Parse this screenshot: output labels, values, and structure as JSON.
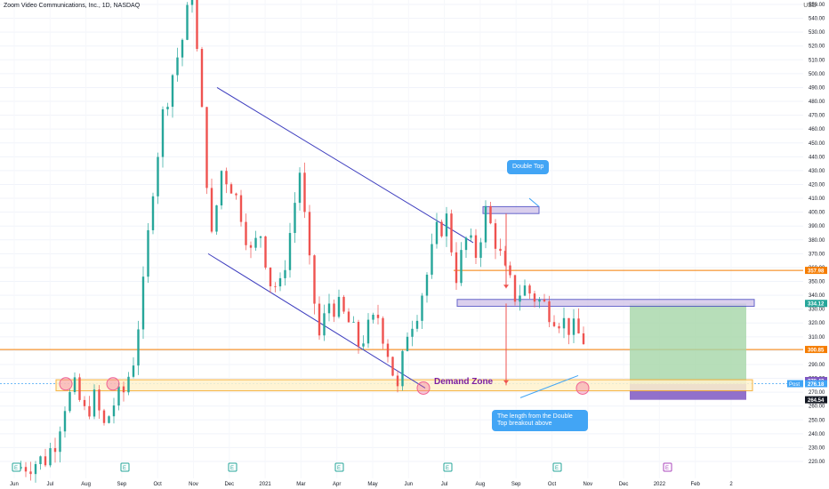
{
  "header": {
    "title": "Zoom Video Communications, Inc., 1D, NASDAQ",
    "currency": "USD"
  },
  "annotations": {
    "double_top": "Double Top",
    "demand_zone": "Demand Zone",
    "length_note_line1": "The length from the Double",
    "length_note_line2": "Top breakout above"
  },
  "colors": {
    "up": "#26a69a",
    "down": "#ef5350",
    "channel": "#3f3fbf",
    "zone_fill": "#fff3cd",
    "zone_border": "#f5a623",
    "target": "#a5d6a7",
    "stop": "#7e57c2",
    "hline": "#f57c00",
    "callout": "#42a5f5",
    "marker": "#f06292"
  },
  "chart_data": {
    "type": "candlestick",
    "ylim": [
      215,
      555
    ],
    "y_ticks": [
      220,
      230,
      240,
      250,
      260,
      270,
      280,
      290,
      300,
      310,
      320,
      330,
      340,
      350,
      360,
      370,
      380,
      390,
      400,
      410,
      420,
      430,
      440,
      450,
      460,
      470,
      480,
      490,
      500,
      510,
      520,
      530,
      540,
      550
    ],
    "x_ticks": [
      "Jun",
      "Jul",
      "Aug",
      "Sep",
      "Oct",
      "Nov",
      "Dec",
      "2021",
      "Mar",
      "Apr",
      "May",
      "Jun",
      "Jul",
      "Aug",
      "Sep",
      "Oct",
      "Nov",
      "Dec",
      "2022",
      "Feb",
      "2"
    ],
    "price_path": [
      [
        0,
        215
      ],
      [
        3,
        222
      ],
      [
        4,
        235
      ],
      [
        5,
        262
      ],
      [
        6,
        272
      ],
      [
        7,
        255
      ],
      [
        8,
        265
      ],
      [
        9,
        245
      ],
      [
        10,
        262
      ],
      [
        11,
        270
      ],
      [
        12,
        294
      ],
      [
        13,
        345
      ],
      [
        14,
        420
      ],
      [
        15,
        470
      ],
      [
        16,
        500
      ],
      [
        17,
        525
      ],
      [
        18,
        560
      ],
      [
        19,
        470
      ],
      [
        20,
        380
      ],
      [
        21,
        430
      ],
      [
        22,
        420
      ],
      [
        23,
        400
      ],
      [
        24,
        370
      ],
      [
        25,
        385
      ],
      [
        26,
        350
      ],
      [
        27,
        345
      ],
      [
        28,
        385
      ],
      [
        29,
        430
      ],
      [
        30,
        360
      ],
      [
        31,
        310
      ],
      [
        32,
        335
      ],
      [
        33,
        330
      ],
      [
        34,
        320
      ],
      [
        35,
        305
      ],
      [
        36,
        315
      ],
      [
        37,
        325
      ],
      [
        38,
        300
      ],
      [
        39,
        270
      ],
      [
        40,
        315
      ],
      [
        41,
        330
      ],
      [
        42,
        355
      ],
      [
        43,
        385
      ],
      [
        44,
        395
      ],
      [
        45,
        355
      ],
      [
        46,
        380
      ],
      [
        47,
        370
      ],
      [
        48,
        400
      ],
      [
        49,
        380
      ],
      [
        50,
        355
      ],
      [
        51,
        340
      ],
      [
        52,
        345
      ],
      [
        59,
        302
      ],
      [
        60,
        300
      ],
      [
        61,
        290
      ],
      [
        62,
        280
      ],
      [
        63,
        272
      ]
    ],
    "horizontal_levels": [
      {
        "label": "357.98",
        "value": 357.98
      },
      {
        "label": "300.85",
        "value": 300.85
      }
    ],
    "price_labels": [
      {
        "text": "357.98",
        "value": 357.98,
        "color": "#f57c00"
      },
      {
        "text": "334.12",
        "value": 334.12,
        "color": "#26a69a"
      },
      {
        "text": "300.85",
        "value": 300.85,
        "color": "#f57c00"
      },
      {
        "text": "278.43",
        "value": 278.43,
        "color": "#7e57c2"
      },
      {
        "text": "276.19",
        "value": 276.19,
        "color": "#131722"
      },
      {
        "text": "276.18",
        "value": 276.18,
        "color": "#42a5f5",
        "prefix": "Post"
      },
      {
        "text": "264.54",
        "value": 264.54,
        "color": "#131722"
      }
    ],
    "zones": [
      {
        "name": "Demand Zone",
        "low": 271,
        "high": 279
      },
      {
        "name": "Breakout Zone",
        "low": 332,
        "high": 337
      },
      {
        "name": "Double Top Zone",
        "low": 399,
        "high": 404
      }
    ],
    "channel": {
      "upper": [
        [
          244,
          490
        ],
        [
          532,
          378
        ]
      ],
      "lower": [
        [
          234,
          370
        ],
        [
          478,
          273
        ]
      ]
    },
    "position": {
      "entry": 276,
      "target": 334,
      "stop": 264.5
    }
  }
}
